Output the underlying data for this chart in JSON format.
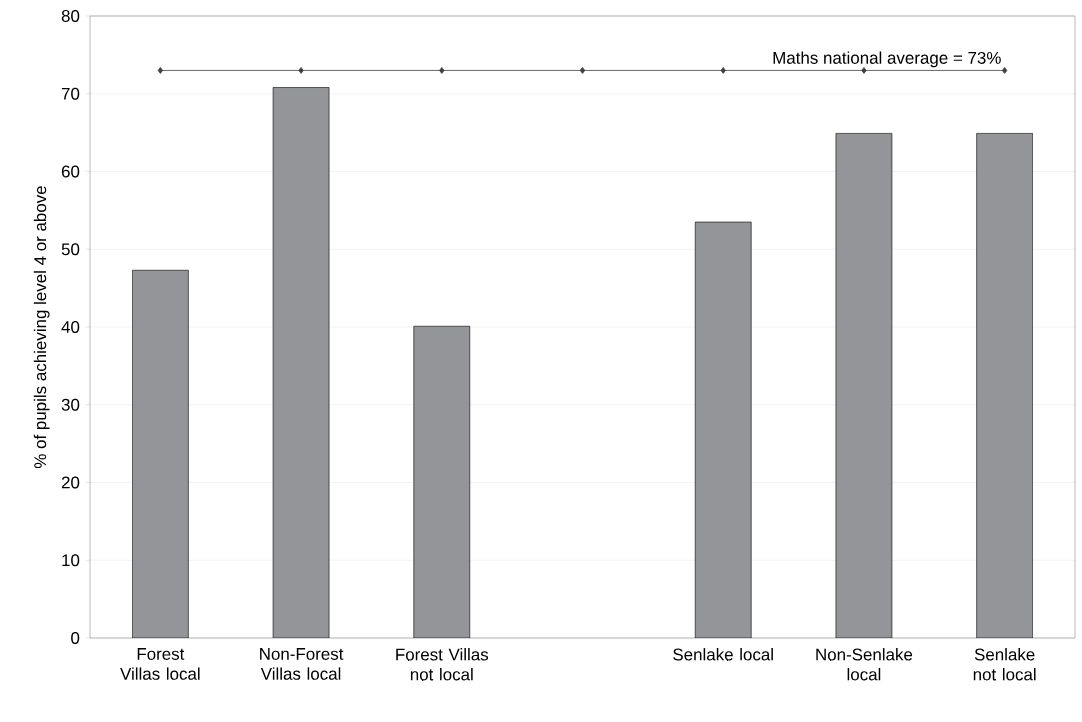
{
  "chart_data": {
    "type": "bar",
    "ylabel": "% of pupils achieving level 4 or above",
    "categories": [
      "Forest Villas local",
      "Non-Forest Villas local",
      "Forest Villas not local",
      null,
      "Senlake local",
      "Non-Senlake local",
      "Senlake not local"
    ],
    "series": [
      {
        "color": "#949599",
        "values": [
          47.3,
          70.8,
          40.1,
          null,
          53.5,
          64.9,
          64.9
        ]
      },
      {
        "type": "line",
        "name": "Maths national average = 73%",
        "color": "#404040",
        "marker": "diamond",
        "values": [
          73,
          73,
          73,
          73,
          73,
          73,
          73
        ]
      }
    ],
    "ylim": [
      0,
      80
    ],
    "yticks": [
      0,
      10,
      20,
      30,
      40,
      50,
      60,
      70,
      80
    ],
    "grid": "y"
  }
}
